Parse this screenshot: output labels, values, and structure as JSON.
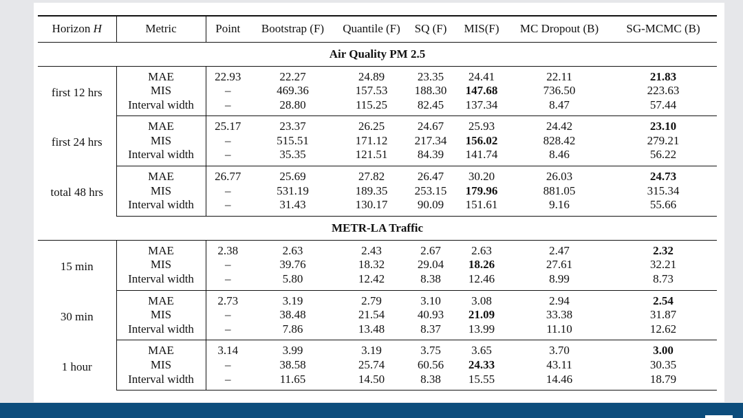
{
  "header": {
    "horizon_label": "Horizon",
    "horizon_var": "H",
    "columns": [
      "Metric",
      "Point",
      "Bootstrap (F)",
      "Quantile (F)",
      "SQ (F)",
      "MIS(F)",
      "MC Dropout (B)",
      "SG-MCMC (B)"
    ]
  },
  "sections": [
    {
      "title": "Air Quality PM 2.5",
      "groups": [
        {
          "horizon": "first 12 hrs",
          "rows": [
            {
              "metric": "MAE",
              "values": [
                "22.93",
                "22.27",
                "24.89",
                "23.35",
                "24.41",
                "22.11",
                "21.83"
              ],
              "bold": 6
            },
            {
              "metric": "MIS",
              "values": [
                "–",
                "469.36",
                "157.53",
                "188.30",
                "147.68",
                "736.50",
                "223.63"
              ],
              "bold": 4
            },
            {
              "metric": "Interval width",
              "values": [
                "–",
                "28.80",
                "115.25",
                "82.45",
                "137.34",
                "8.47",
                "57.44"
              ],
              "bold": -1
            }
          ]
        },
        {
          "horizon": "first 24 hrs",
          "rows": [
            {
              "metric": "MAE",
              "values": [
                "25.17",
                "23.37",
                "26.25",
                "24.67",
                "25.93",
                "24.42",
                "23.10"
              ],
              "bold": 6
            },
            {
              "metric": "MIS",
              "values": [
                "–",
                "515.51",
                "171.12",
                "217.34",
                "156.02",
                "828.42",
                "279.21"
              ],
              "bold": 4
            },
            {
              "metric": "Interval width",
              "values": [
                "–",
                "35.35",
                "121.51",
                "84.39",
                "141.74",
                "8.46",
                "56.22"
              ],
              "bold": -1
            }
          ]
        },
        {
          "horizon": "total 48 hrs",
          "rows": [
            {
              "metric": "MAE",
              "values": [
                "26.77",
                "25.69",
                "27.82",
                "26.47",
                "30.20",
                "26.03",
                "24.73"
              ],
              "bold": 6
            },
            {
              "metric": "MIS",
              "values": [
                "–",
                "531.19",
                "189.35",
                "253.15",
                "179.96",
                "881.05",
                "315.34"
              ],
              "bold": 4
            },
            {
              "metric": "Interval width",
              "values": [
                "–",
                "31.43",
                "130.17",
                "90.09",
                "151.61",
                "9.16",
                "55.66"
              ],
              "bold": -1
            }
          ]
        }
      ]
    },
    {
      "title": "METR-LA Traffic",
      "groups": [
        {
          "horizon": "15 min",
          "rows": [
            {
              "metric": "MAE",
              "values": [
                "2.38",
                "2.63",
                "2.43",
                "2.67",
                "2.63",
                "2.47",
                "2.32"
              ],
              "bold": 6
            },
            {
              "metric": "MIS",
              "values": [
                "–",
                "39.76",
                "18.32",
                "29.04",
                "18.26",
                "27.61",
                "32.21"
              ],
              "bold": 4
            },
            {
              "metric": "Interval width",
              "values": [
                "–",
                "5.80",
                "12.42",
                "8.38",
                "12.46",
                "8.99",
                "8.73"
              ],
              "bold": -1
            }
          ]
        },
        {
          "horizon": "30 min",
          "rows": [
            {
              "metric": "MAE",
              "values": [
                "2.73",
                "3.19",
                "2.79",
                "3.10",
                "3.08",
                "2.94",
                "2.54"
              ],
              "bold": 6
            },
            {
              "metric": "MIS",
              "values": [
                "–",
                "38.48",
                "21.54",
                "40.93",
                "21.09",
                "33.38",
                "31.87"
              ],
              "bold": 4
            },
            {
              "metric": "Interval width",
              "values": [
                "–",
                "7.86",
                "13.48",
                "8.37",
                "13.99",
                "11.10",
                "12.62"
              ],
              "bold": -1
            }
          ]
        },
        {
          "horizon": "1 hour",
          "rows": [
            {
              "metric": "MAE",
              "values": [
                "3.14",
                "3.99",
                "3.19",
                "3.75",
                "3.65",
                "3.70",
                "3.00"
              ],
              "bold": 6
            },
            {
              "metric": "MIS",
              "values": [
                "–",
                "38.58",
                "25.74",
                "60.56",
                "24.33",
                "43.11",
                "30.35"
              ],
              "bold": 4
            },
            {
              "metric": "Interval width",
              "values": [
                "–",
                "11.65",
                "14.50",
                "8.38",
                "15.55",
                "14.46",
                "18.79"
              ],
              "bold": -1
            }
          ]
        }
      ]
    }
  ]
}
